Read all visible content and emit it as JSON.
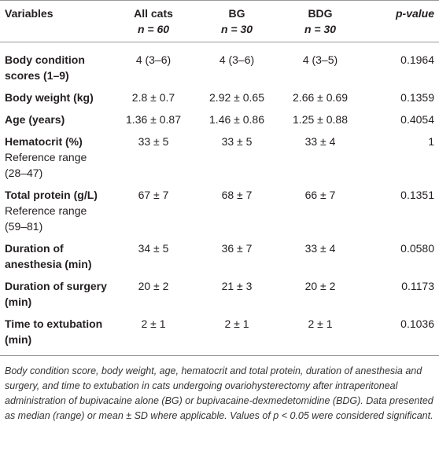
{
  "table": {
    "header": [
      "Variables",
      "All cats",
      "BG",
      "BDG",
      "p-value"
    ],
    "header_sub": [
      null,
      "n = 60",
      "n = 30",
      "n = 30",
      null
    ],
    "rows": [
      {
        "label": "Body condition scores (1–9)",
        "sub": null,
        "cells": [
          "4 (3–6)",
          "4 (3–6)",
          "4 (3–5)",
          "0.1964"
        ]
      },
      {
        "label": "Body weight (kg)",
        "sub": null,
        "cells": [
          "2.8 ± 0.7",
          "2.92 ± 0.65",
          "2.66 ± 0.69",
          "0.1359"
        ]
      },
      {
        "label": "Age (years)",
        "sub": null,
        "cells": [
          "1.36 ± 0.87",
          "1.46 ± 0.86",
          "1.25 ± 0.88",
          "0.4054"
        ]
      },
      {
        "label": "Hematocrit (%)",
        "sub": "Reference range (28–47)",
        "cells": [
          "33 ± 5",
          "33 ± 5",
          "33 ± 4",
          "1"
        ]
      },
      {
        "label": "Total protein (g/L)",
        "sub": "Reference range (59–81)",
        "cells": [
          "67 ± 7",
          "68 ± 7",
          "66 ± 7",
          "0.1351"
        ]
      },
      {
        "label": "Duration of anesthesia (min)",
        "sub": null,
        "cells": [
          "34 ± 5",
          "36 ± 7",
          "33 ± 4",
          "0.0580"
        ]
      },
      {
        "label": "Duration of surgery (min)",
        "sub": null,
        "cells": [
          "20 ± 2",
          "21 ± 3",
          "20 ± 2",
          "0.1173"
        ]
      },
      {
        "label": "Time to extubation (min)",
        "sub": null,
        "cells": [
          "2 ± 1",
          "2 ± 1",
          "2 ± 1",
          "0.1036"
        ]
      }
    ]
  },
  "caption": "Body condition score, body weight, age, hematocrit and total protein, duration of anesthesia and surgery, and time to extubation in cats undergoing ovariohysterectomy after intraperitoneal administration of bupivacaine alone (BG) or bupivacaine-dexmedetomidine (BDG). Data presented as median (range) or mean ± SD where applicable. Values of p < 0.05 were considered significant."
}
